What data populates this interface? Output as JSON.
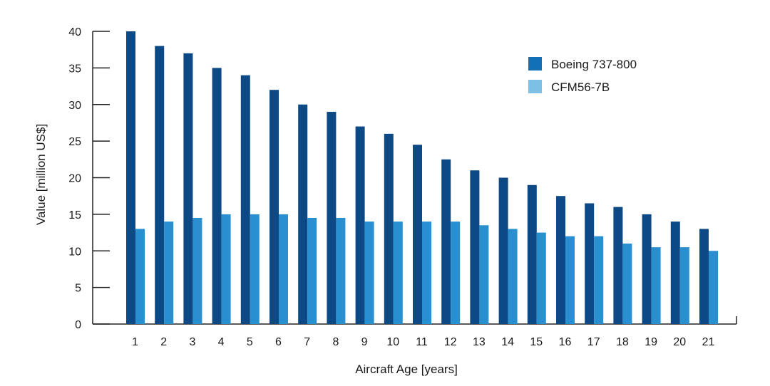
{
  "chart_data": {
    "type": "bar",
    "title": "",
    "xlabel": "Aircraft Age [years]",
    "ylabel": "Value [million US$]",
    "ylim": [
      0,
      40
    ],
    "yticks": [
      0,
      5,
      10,
      15,
      20,
      25,
      30,
      35,
      40
    ],
    "categories": [
      "1",
      "2",
      "3",
      "4",
      "5",
      "6",
      "7",
      "8",
      "9",
      "10",
      "11",
      "12",
      "13",
      "14",
      "15",
      "16",
      "17",
      "18",
      "19",
      "20",
      "21"
    ],
    "series": [
      {
        "name": "Boeing 737-800",
        "color": "#0d4a85",
        "legend_color": "#1170b8",
        "values": [
          40,
          38,
          37,
          35,
          34,
          32,
          30,
          29,
          27,
          26,
          24.5,
          22.5,
          21,
          20,
          19,
          17.5,
          16.5,
          16,
          15,
          14,
          13
        ]
      },
      {
        "name": "CFM56-7B",
        "color": "#2a8fcf",
        "legend_color": "#7cc0e6",
        "values": [
          13,
          14,
          14.5,
          15,
          15,
          15,
          14.5,
          14.5,
          14,
          14,
          14,
          14,
          13.5,
          13,
          12.5,
          12,
          12,
          11,
          10.5,
          10.5,
          10
        ]
      }
    ],
    "legend_position": "top-right",
    "grid": false
  }
}
